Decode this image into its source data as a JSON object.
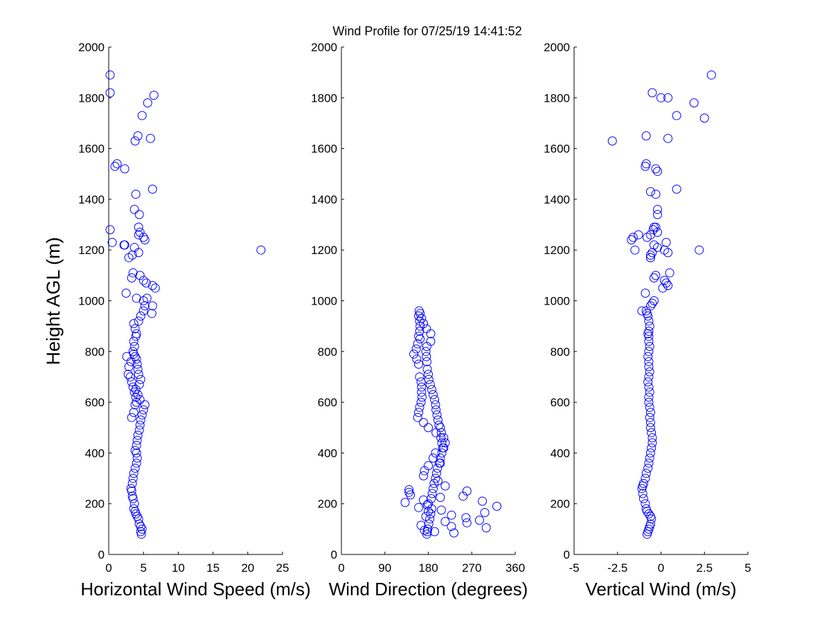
{
  "figure": {
    "title": "Wind Profile for  07/25/19 14:41:52",
    "ylabel": "Height AGL (m)"
  },
  "chart_data": [
    {
      "type": "scatter",
      "xlabel": "Horizontal Wind Speed (m/s)",
      "ylabel": "Height AGL (m)",
      "xlim": [
        0,
        25
      ],
      "ylim": [
        0,
        2000
      ],
      "xticks": [
        "0",
        "5",
        "10",
        "15",
        "20",
        "25"
      ],
      "xtick_values": [
        0,
        5,
        10,
        15,
        20,
        25
      ],
      "yticks": [
        "0",
        "200",
        "400",
        "600",
        "800",
        "1000",
        "1200",
        "1400",
        "1600",
        "1800",
        "2000"
      ],
      "ytick_values": [
        0,
        200,
        400,
        600,
        800,
        1000,
        1200,
        1400,
        1600,
        1800,
        2000
      ],
      "marker_color": "#0000ff",
      "x": [
        4.7,
        4.6,
        4.8,
        4.6,
        4.4,
        4.3,
        4.1,
        3.9,
        3.8,
        3.6,
        3.7,
        3.5,
        3.4,
        3.3,
        3.2,
        3.4,
        3.5,
        3.6,
        3.8,
        4.0,
        4.1,
        4.0,
        3.8,
        4.0,
        4.1,
        4.2,
        4.4,
        4.5,
        4.6,
        4.8,
        5.0,
        5.2,
        4.5,
        4.2,
        3.9,
        4.4,
        4.6,
        4.3,
        4.2,
        4.1,
        4.0,
        3.8,
        3.6,
        3.5,
        3.7,
        3.6,
        3.9,
        4.0,
        3.8,
        3.6,
        3.2,
        2.9,
        2.6,
        2.8,
        3.1,
        3.3,
        3.5,
        3.7,
        3.9,
        4.0,
        3.8,
        3.6,
        3.3,
        4.3,
        4.6,
        5.0,
        5.2,
        6.2,
        6.3,
        5.5,
        5.0,
        4.0,
        2.5,
        6.7,
        6.3,
        5.4,
        5.0,
        4.5,
        3.5,
        3.3,
        2.9,
        2.2,
        21.9,
        3.4,
        3.7,
        0.5,
        2.3,
        5.0,
        4.3,
        4.5,
        0.2,
        4.3,
        5.2,
        4.3,
        3.7,
        4.4,
        3.9,
        6.3,
        2.3,
        0.9,
        1.2,
        3.8,
        6.0,
        4.2,
        4.8,
        5.6,
        6.5,
        0.2,
        0.2
      ],
      "y": [
        80,
        90,
        100,
        110,
        120,
        140,
        150,
        160,
        170,
        180,
        200,
        220,
        230,
        250,
        260,
        280,
        300,
        320,
        340,
        360,
        380,
        400,
        410,
        430,
        450,
        470,
        490,
        510,
        530,
        550,
        570,
        590,
        610,
        630,
        650,
        670,
        690,
        710,
        730,
        750,
        770,
        780,
        790,
        800,
        820,
        840,
        860,
        870,
        890,
        910,
        760,
        740,
        780,
        710,
        700,
        680,
        660,
        640,
        620,
        600,
        590,
        560,
        540,
        920,
        940,
        960,
        980,
        950,
        980,
        1010,
        1000,
        1010,
        1030,
        1050,
        1060,
        1070,
        1080,
        1100,
        1110,
        1090,
        1170,
        1220,
        1200,
        1180,
        1210,
        1230,
        1220,
        1250,
        1260,
        1270,
        1280,
        1290,
        1240,
        1190,
        1360,
        1340,
        1420,
        1440,
        1520,
        1530,
        1540,
        1630,
        1640,
        1650,
        1730,
        1780,
        1810,
        1820,
        1890
      ]
    },
    {
      "type": "scatter",
      "xlabel": "Wind Direction (degrees)",
      "ylabel": "",
      "xlim": [
        0,
        360
      ],
      "ylim": [
        0,
        2000
      ],
      "xticks": [
        "0",
        "90",
        "180",
        "270",
        "360"
      ],
      "xtick_values": [
        0,
        90,
        180,
        270,
        360
      ],
      "yticks": [
        "0",
        "200",
        "400",
        "600",
        "800",
        "1000",
        "1200",
        "1400",
        "1600",
        "1800",
        "2000"
      ],
      "ytick_values": [
        0,
        200,
        400,
        600,
        800,
        1000,
        1200,
        1400,
        1600,
        1800,
        2000
      ],
      "marker_color": "#0000ff",
      "x": [
        177,
        178,
        179,
        181,
        183,
        185,
        187,
        180,
        186,
        188,
        190,
        192,
        195,
        197,
        199,
        203,
        205,
        208,
        212,
        215,
        212,
        207,
        205,
        202,
        200,
        198,
        196,
        195,
        193,
        190,
        187,
        184,
        181,
        180,
        178,
        177,
        176,
        175,
        177,
        185,
        185,
        176,
        170,
        166,
        163,
        161,
        160,
        162,
        163,
        162,
        160,
        163,
        158,
        155,
        150,
        156,
        160,
        162,
        165,
        166,
        166,
        167,
        165,
        162,
        160,
        158,
        170,
        180,
        196,
        206,
        208,
        210,
        195,
        190,
        205,
        180,
        172,
        170,
        200,
        215,
        260,
        252,
        292,
        322,
        180,
        175,
        215,
        228,
        193,
        233,
        172,
        300,
        165,
        260,
        286,
        258,
        228,
        297,
        207,
        160,
        178,
        132,
        170,
        205,
        143,
        140,
        140
      ],
      "y": [
        80,
        90,
        100,
        120,
        140,
        160,
        180,
        200,
        220,
        240,
        260,
        280,
        300,
        320,
        340,
        360,
        380,
        400,
        420,
        440,
        460,
        480,
        500,
        510,
        530,
        550,
        570,
        590,
        610,
        630,
        650,
        670,
        690,
        710,
        730,
        760,
        780,
        800,
        820,
        840,
        870,
        890,
        910,
        930,
        950,
        960,
        940,
        920,
        900,
        880,
        860,
        850,
        830,
        810,
        790,
        770,
        750,
        700,
        680,
        660,
        640,
        620,
        600,
        580,
        560,
        540,
        520,
        500,
        480,
        460,
        440,
        420,
        400,
        380,
        360,
        350,
        330,
        310,
        290,
        270,
        250,
        230,
        210,
        190,
        170,
        150,
        130,
        110,
        90,
        85,
        95,
        105,
        115,
        125,
        135,
        145,
        155,
        165,
        175,
        185,
        195,
        205,
        215,
        225,
        235,
        245,
        255
      ],
      "note_points_upper": true
    },
    {
      "type": "scatter",
      "xlabel": "Vertical Wind (m/s)",
      "ylabel": "",
      "xlim": [
        -5,
        5
      ],
      "ylim": [
        0,
        2000
      ],
      "xticks": [
        "-5",
        "-2.5",
        "0",
        "2.5",
        "5"
      ],
      "xtick_values": [
        -5,
        -2.5,
        0,
        2.5,
        5
      ],
      "yticks": [
        "0",
        "200",
        "400",
        "600",
        "800",
        "1000",
        "1200",
        "1400",
        "1600",
        "1800",
        "2000"
      ],
      "ytick_values": [
        0,
        200,
        400,
        600,
        800,
        1000,
        1200,
        1400,
        1600,
        1800,
        2000
      ],
      "marker_color": "#0000ff",
      "x": [
        -0.8,
        -0.75,
        -0.7,
        -0.65,
        -0.6,
        -0.55,
        -0.6,
        -0.7,
        -0.8,
        -0.85,
        -0.9,
        -1.0,
        -1.05,
        -1.1,
        -1.05,
        -1.0,
        -0.9,
        -0.85,
        -0.75,
        -0.7,
        -0.65,
        -0.6,
        -0.55,
        -0.5,
        -0.5,
        -0.55,
        -0.6,
        -0.6,
        -0.65,
        -0.6,
        -0.65,
        -0.7,
        -0.7,
        -0.65,
        -0.7,
        -0.75,
        -0.7,
        -0.65,
        -0.7,
        -0.7,
        -0.75,
        -0.7,
        -0.65,
        -0.7,
        -0.7,
        -0.75,
        -0.7,
        -0.65,
        -0.7,
        -0.75,
        -0.8,
        -0.85,
        -1.1,
        -0.6,
        -0.5,
        -0.4,
        -0.9,
        0.4,
        0.3,
        0.2,
        -0.4,
        -0.3,
        0.1,
        0.5,
        -0.6,
        -0.5,
        -0.2,
        0.3,
        -0.6,
        -0.8,
        -1.3,
        -1.6,
        -1.7,
        -1.5,
        -0.4,
        -0.45,
        0.4,
        -0.3,
        0.2,
        -0.6,
        -0.6,
        -0.4,
        -0.2,
        2.2,
        -0.2,
        -0.2,
        -0.3,
        -0.6,
        -0.2,
        0.9,
        -0.3,
        -0.9,
        -0.85,
        -0.85,
        -2.8,
        0.4,
        2.5,
        0.9,
        1.9,
        -0.5,
        0.0,
        2.9,
        0.4
      ],
      "y": [
        80,
        90,
        100,
        110,
        120,
        140,
        150,
        160,
        170,
        180,
        200,
        220,
        240,
        260,
        270,
        280,
        300,
        320,
        340,
        360,
        380,
        400,
        420,
        440,
        460,
        480,
        500,
        520,
        540,
        560,
        580,
        600,
        620,
        640,
        660,
        680,
        700,
        720,
        740,
        760,
        780,
        800,
        820,
        840,
        860,
        870,
        880,
        900,
        920,
        940,
        950,
        960,
        960,
        980,
        990,
        1000,
        1030,
        1060,
        1070,
        1080,
        1090,
        1100,
        1050,
        1110,
        1170,
        1190,
        1210,
        1230,
        1260,
        1250,
        1260,
        1250,
        1240,
        1200,
        1220,
        1280,
        1190,
        1290,
        1200,
        1180,
        1170,
        1290,
        1270,
        1200,
        1340,
        1360,
        1420,
        1430,
        1510,
        1440,
        1520,
        1530,
        1540,
        1650,
        1630,
        1640,
        1720,
        1730,
        1780,
        1820,
        1800,
        1890,
        1800
      ]
    }
  ]
}
